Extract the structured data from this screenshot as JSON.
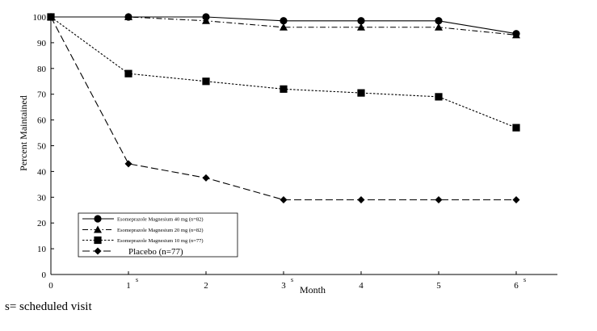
{
  "chart_data": {
    "type": "line",
    "ylabel": "Percent Maintained",
    "xlabel": "Month",
    "x": [
      0,
      1,
      2,
      3,
      4,
      5,
      6
    ],
    "x_tick_labels": [
      "0",
      "1",
      "2",
      "3",
      "4",
      "5",
      "6"
    ],
    "x_tick_superscripts": [
      "",
      "s",
      "",
      "s",
      "",
      "",
      "s"
    ],
    "y_ticks": [
      0,
      10,
      20,
      30,
      40,
      50,
      60,
      70,
      80,
      90,
      100
    ],
    "xlim": [
      0,
      6.5
    ],
    "ylim": [
      0,
      100
    ],
    "grid": false,
    "legend_position": "bottom-left",
    "series": [
      {
        "name": "Esomeprazole Magnesium 40 mg (n=82)",
        "marker": "circle",
        "dash": "solid",
        "values": [
          100,
          100,
          100,
          98.5,
          98.5,
          98.5,
          93.5
        ]
      },
      {
        "name": "Esomeprazole Magnesium 20 mg (n=82)",
        "marker": "triangle",
        "dash": "dashdot",
        "values": [
          100,
          100,
          98.5,
          96,
          96,
          96,
          93
        ]
      },
      {
        "name": "Esomeprazole Magnesium 10 mg (n=77)",
        "marker": "square",
        "dash": "dotted",
        "values": [
          100,
          78,
          75,
          72,
          70.5,
          69,
          57
        ]
      },
      {
        "name": "Placebo (n=77)",
        "marker": "diamond",
        "dash": "longdash",
        "values": [
          100,
          43,
          37.5,
          29,
          29,
          29,
          29
        ]
      }
    ]
  },
  "footnote": "s= scheduled visit"
}
